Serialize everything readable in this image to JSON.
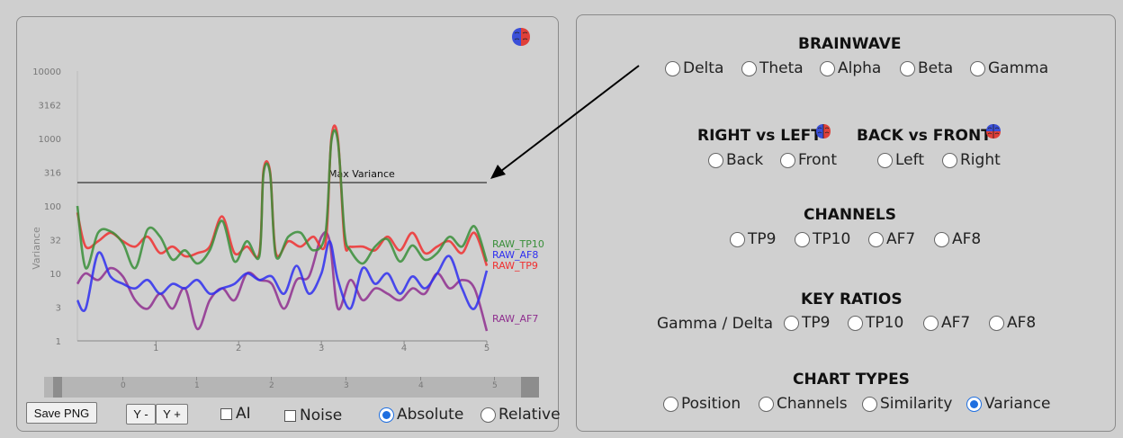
{
  "chart_data": {
    "type": "line",
    "ylabel": "Variance",
    "y_scale": "log",
    "ylim": [
      1,
      10000
    ],
    "y_ticks": [
      "1",
      "3",
      "10",
      "32",
      "100",
      "316",
      "1000",
      "3162",
      "10000"
    ],
    "y_tick_values": [
      1,
      3.162,
      10,
      31.62,
      100,
      316.2,
      1000,
      3162,
      10000
    ],
    "xlim": [
      0.05,
      5
    ],
    "x_ticks": [
      "1",
      "2",
      "3",
      "4",
      "5"
    ],
    "annotation": {
      "label": "Max Variance",
      "y": 250
    },
    "series": [
      {
        "name": "RAW_TP10",
        "color": "#3a8f3a",
        "x": [
          0.05,
          0.15,
          0.3,
          0.45,
          0.6,
          0.75,
          0.9,
          1.05,
          1.2,
          1.35,
          1.5,
          1.65,
          1.8,
          1.95,
          2.1,
          2.25,
          2.3,
          2.38,
          2.45,
          2.6,
          2.75,
          2.9,
          3.05,
          3.12,
          3.2,
          3.28,
          3.35,
          3.5,
          3.65,
          3.8,
          3.95,
          4.1,
          4.25,
          4.4,
          4.55,
          4.7,
          4.85,
          5.0
        ],
        "y": [
          100,
          12,
          40,
          42,
          28,
          12,
          45,
          35,
          16,
          22,
          14,
          22,
          60,
          15,
          30,
          18,
          300,
          300,
          18,
          35,
          40,
          22,
          40,
          900,
          900,
          40,
          22,
          14,
          25,
          32,
          15,
          26,
          16,
          20,
          35,
          25,
          50,
          15
        ]
      },
      {
        "name": "RAW_AF8",
        "color": "#2f2ff0",
        "x": [
          0.05,
          0.15,
          0.3,
          0.45,
          0.6,
          0.75,
          0.9,
          1.05,
          1.2,
          1.35,
          1.5,
          1.65,
          1.8,
          1.95,
          2.1,
          2.25,
          2.4,
          2.55,
          2.7,
          2.85,
          3.0,
          3.1,
          3.2,
          3.35,
          3.5,
          3.65,
          3.8,
          3.95,
          4.1,
          4.25,
          4.4,
          4.55,
          4.7,
          4.85,
          5.0
        ],
        "y": [
          4,
          3,
          20,
          9,
          7,
          6,
          8,
          5,
          7,
          6,
          8,
          5,
          6,
          7,
          10,
          8,
          9,
          5,
          13,
          5,
          10,
          30,
          8,
          3,
          12,
          7,
          10,
          5,
          9,
          6,
          10,
          18,
          6,
          3,
          11
        ]
      },
      {
        "name": "RAW_TP9",
        "color": "#f03030",
        "x": [
          0.05,
          0.15,
          0.3,
          0.45,
          0.6,
          0.75,
          0.9,
          1.05,
          1.2,
          1.35,
          1.5,
          1.65,
          1.8,
          1.95,
          2.1,
          2.25,
          2.3,
          2.38,
          2.45,
          2.6,
          2.75,
          2.9,
          3.05,
          3.12,
          3.2,
          3.28,
          3.35,
          3.5,
          3.65,
          3.8,
          3.95,
          4.1,
          4.25,
          4.4,
          4.55,
          4.7,
          4.85,
          5.0
        ],
        "y": [
          80,
          25,
          30,
          40,
          30,
          25,
          35,
          20,
          25,
          18,
          20,
          25,
          70,
          20,
          25,
          20,
          330,
          320,
          20,
          30,
          25,
          35,
          28,
          1000,
          1000,
          30,
          25,
          25,
          22,
          35,
          22,
          40,
          20,
          25,
          30,
          20,
          40,
          13
        ]
      },
      {
        "name": "RAW_AF7",
        "color": "#8f2f8f",
        "x": [
          0.05,
          0.15,
          0.3,
          0.45,
          0.6,
          0.75,
          0.9,
          1.05,
          1.2,
          1.35,
          1.5,
          1.65,
          1.8,
          1.95,
          2.1,
          2.25,
          2.4,
          2.55,
          2.7,
          2.85,
          3.0,
          3.1,
          3.2,
          3.35,
          3.5,
          3.65,
          3.8,
          3.95,
          4.1,
          4.25,
          4.4,
          4.55,
          4.7,
          4.85,
          5.0
        ],
        "y": [
          7,
          10,
          8,
          12,
          9,
          4,
          3,
          5,
          3,
          6,
          1.5,
          4,
          6,
          4,
          10,
          8,
          7,
          3,
          8,
          9,
          35,
          30,
          3,
          8,
          4,
          6,
          5,
          4,
          6,
          5,
          10,
          6,
          8,
          6,
          1.4
        ]
      }
    ]
  },
  "controls": {
    "save_png": "Save PNG",
    "y_minus": "Y -",
    "y_plus": "Y +",
    "ai": "AI",
    "noise": "Noise",
    "absolute": "Absolute",
    "relative": "Relative",
    "scale_mode": "Absolute"
  },
  "scrollbar_ticks": [
    "0",
    "1",
    "2",
    "3",
    "4",
    "5"
  ],
  "brainwave": {
    "title": "BRAINWAVE",
    "options": [
      "Delta",
      "Theta",
      "Alpha",
      "Beta",
      "Gamma"
    ]
  },
  "right_left": {
    "title": "RIGHT vs LEFT",
    "options": [
      "Back",
      "Front"
    ]
  },
  "back_front": {
    "title": "BACK vs FRONT",
    "options": [
      "Left",
      "Right"
    ]
  },
  "channels": {
    "title": "CHANNELS",
    "options": [
      "TP9",
      "TP10",
      "AF7",
      "AF8"
    ]
  },
  "key_ratios": {
    "title": "KEY RATIOS",
    "prefix": "Gamma / Delta",
    "options": [
      "TP9",
      "TP10",
      "AF7",
      "AF8"
    ]
  },
  "chart_types": {
    "title": "CHART TYPES",
    "options": [
      "Position",
      "Channels",
      "Similarity",
      "Variance"
    ],
    "selected": "Variance"
  },
  "icons": {
    "brain": "brain-icon"
  }
}
